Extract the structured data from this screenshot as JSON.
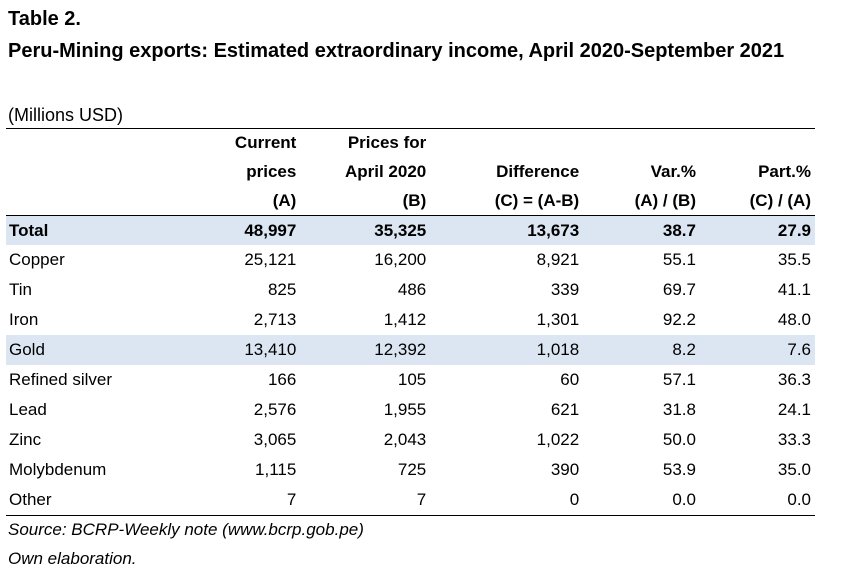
{
  "heading": {
    "table_number": "Table 2.",
    "title": "Peru-Mining exports: Estimated extraordinary income, April 2020-September 2021",
    "units": "(Millions USD)"
  },
  "table": {
    "header": {
      "col1": {
        "line1": "Current",
        "line2": "prices",
        "line3": "(A)"
      },
      "col2": {
        "line1": "Prices for",
        "line2": "April 2020",
        "line3": "(B)"
      },
      "col3": {
        "line2": "Difference",
        "line3": "(C) = (A-B)"
      },
      "col4": {
        "line2": "Var.%",
        "line3": "(A) / (B)"
      },
      "col5": {
        "line2": "Part.%",
        "line3": "(C) / (A)"
      }
    },
    "rows": [
      {
        "label": "Total",
        "current": "48,997",
        "prices_2020": "35,325",
        "difference": "13,673",
        "var": "38.7",
        "part": "27.9"
      },
      {
        "label": "Copper",
        "current": "25,121",
        "prices_2020": "16,200",
        "difference": "8,921",
        "var": "55.1",
        "part": "35.5"
      },
      {
        "label": "Tin",
        "current": "825",
        "prices_2020": "486",
        "difference": "339",
        "var": "69.7",
        "part": "41.1"
      },
      {
        "label": "Iron",
        "current": "2,713",
        "prices_2020": "1,412",
        "difference": "1,301",
        "var": "92.2",
        "part": "48.0"
      },
      {
        "label": "Gold",
        "current": "13,410",
        "prices_2020": "12,392",
        "difference": "1,018",
        "var": "8.2",
        "part": "7.6"
      },
      {
        "label": "Refined silver",
        "current": "166",
        "prices_2020": "105",
        "difference": "60",
        "var": "57.1",
        "part": "36.3"
      },
      {
        "label": "Lead",
        "current": "2,576",
        "prices_2020": "1,955",
        "difference": "621",
        "var": "31.8",
        "part": "24.1"
      },
      {
        "label": "Zinc",
        "current": "3,065",
        "prices_2020": "2,043",
        "difference": "1,022",
        "var": "50.0",
        "part": "33.3"
      },
      {
        "label": "Molybdenum",
        "current": "1,115",
        "prices_2020": "725",
        "difference": "390",
        "var": "53.9",
        "part": "35.0"
      },
      {
        "label": "Other",
        "current": "7",
        "prices_2020": "7",
        "difference": "0",
        "var": "0.0",
        "part": "0.0"
      }
    ]
  },
  "notes": {
    "source": "Source: BCRP-Weekly note (www.bcrp.gob.pe)",
    "elaboration": "Own elaboration."
  },
  "colors": {
    "highlight_row": "#dce6f2"
  }
}
